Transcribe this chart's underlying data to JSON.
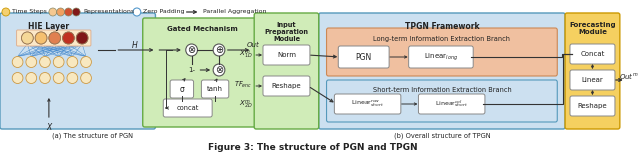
{
  "bg_color": "#ffffff",
  "caption_a": "(a) The structure of PGN",
  "caption_b": "(b) Overall structure of TPGN",
  "main_caption": "Figure 3: The structure of PGN and TPGN",
  "hie_color": "#cce0f0",
  "gated_color": "#d0ecb8",
  "input_color": "#d0ecb8",
  "tpgn_color": "#cce0f0",
  "long_color": "#f0c0a0",
  "short_color": "#cce0f0",
  "forecast_color": "#f5d060",
  "box_color": "#ffffff",
  "rep_colors": [
    "#f5c890",
    "#f0a060",
    "#d05030",
    "#801818"
  ]
}
